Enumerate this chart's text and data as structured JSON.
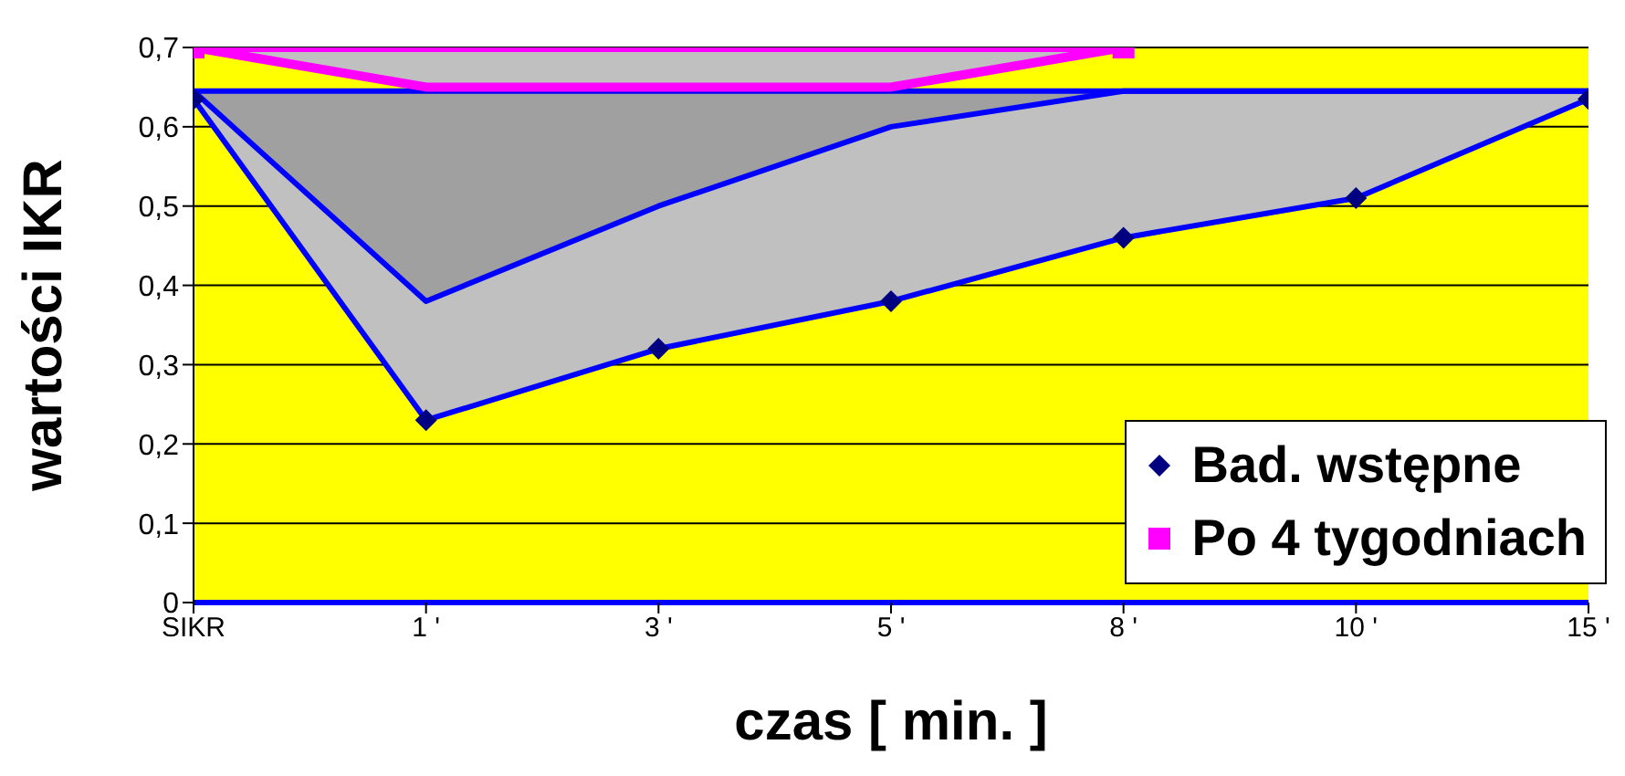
{
  "chart_data": {
    "type": "line",
    "xlabel": "czas [ min. ]",
    "ylabel": "wartości  IKR",
    "categories": [
      "SIKR",
      "1 '",
      "3 '",
      "5 '",
      "8 '",
      "10 '",
      "15 '"
    ],
    "series": [
      {
        "name": "Bad. wstępne",
        "color": "#0000ff",
        "marker": "diamond",
        "values": [
          0.635,
          0.23,
          0.32,
          0.38,
          0.46,
          0.51,
          0.635
        ],
        "lower": [
          0.635,
          0.23,
          0.32,
          0.38,
          0.46,
          0.51,
          0.635
        ],
        "upper": [
          0.645,
          0.645,
          0.645,
          0.645,
          0.645,
          0.645,
          0.645
        ]
      },
      {
        "color": "#0000ff",
        "values": [
          0.645,
          0.38,
          0.5,
          0.6,
          0.645,
          0.645,
          0.645
        ],
        "lower": [
          0.645,
          0.38,
          0.5,
          0.6,
          0.645,
          0.645,
          0.645
        ],
        "upper": [
          0.645,
          0.645,
          0.645,
          0.645,
          0.645,
          0.645,
          0.645
        ]
      },
      {
        "color": "#0000ff",
        "values": [
          0.645,
          0.645,
          0.645,
          0.645,
          0.645,
          0.645,
          0.645
        ]
      },
      {
        "color": "#ff00ff",
        "values": [
          0.7,
          0.65,
          0.65,
          0.65,
          0.7,
          null,
          null
        ],
        "lower": [
          0.7,
          0.65,
          0.65,
          0.65,
          0.7,
          null,
          null
        ],
        "upper": [
          0.7,
          0.7,
          0.7,
          0.7,
          0.7,
          null,
          null
        ]
      },
      {
        "name": "Po 4 tygodniach",
        "color": "#ff00ff",
        "marker": "square",
        "values": [
          0.7,
          null,
          null,
          null,
          0.7,
          null,
          null
        ]
      }
    ],
    "ylim": [
      0,
      0.7
    ],
    "yticks": [
      0,
      {
        "value": 0.1,
        "label": "0,1"
      },
      {
        "value": 0.2,
        "label": "0,2"
      },
      {
        "value": 0.3,
        "label": "0,3"
      },
      {
        "value": 0.4,
        "label": "0,4"
      },
      {
        "value": 0.5,
        "label": "0,5"
      },
      {
        "value": 0.6,
        "label": "0,6"
      },
      {
        "value": 0.7,
        "label": "0,7"
      }
    ],
    "grid": "y",
    "legend": "bottom right"
  }
}
